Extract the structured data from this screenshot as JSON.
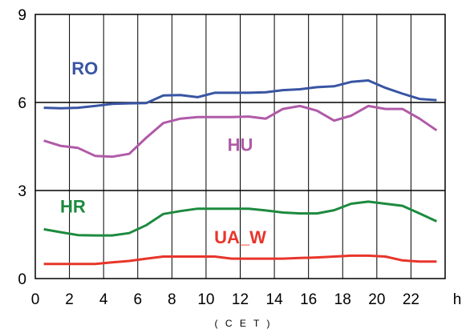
{
  "chart_data": {
    "type": "line",
    "x_unit_label": "h",
    "x_sublabel": "( C E T )",
    "xlim": [
      0,
      24
    ],
    "ylim": [
      0,
      9
    ],
    "x_ticks": [
      0,
      2,
      4,
      6,
      8,
      10,
      12,
      14,
      16,
      18,
      20,
      22
    ],
    "y_ticks": [
      0,
      3,
      6,
      9
    ],
    "grid": {
      "x": true,
      "y": true
    },
    "x": [
      0.5,
      1.5,
      2.5,
      3.5,
      4.5,
      5.5,
      6.5,
      7.5,
      8.5,
      9.5,
      10.5,
      11.5,
      12.5,
      13.5,
      14.5,
      15.5,
      16.5,
      17.5,
      18.5,
      19.5,
      20.5,
      21.5,
      22.5,
      23.5
    ],
    "series": [
      {
        "name": "RO",
        "color": "#3955a3",
        "label_at": [
          2.9,
          6.95
        ],
        "values": [
          5.82,
          5.8,
          5.82,
          5.88,
          5.95,
          5.97,
          5.98,
          6.24,
          6.25,
          6.18,
          6.33,
          6.33,
          6.33,
          6.35,
          6.42,
          6.45,
          6.52,
          6.55,
          6.7,
          6.75,
          6.5,
          6.3,
          6.12,
          6.08
        ]
      },
      {
        "name": "HU",
        "color": "#b05aa8",
        "label_at": [
          12.0,
          4.35
        ],
        "values": [
          4.7,
          4.52,
          4.45,
          4.18,
          4.15,
          4.25,
          4.8,
          5.3,
          5.45,
          5.5,
          5.5,
          5.5,
          5.52,
          5.45,
          5.78,
          5.88,
          5.72,
          5.38,
          5.55,
          5.88,
          5.78,
          5.78,
          5.45,
          5.05
        ]
      },
      {
        "name": "HR",
        "color": "#1d8a3f",
        "label_at": [
          2.2,
          2.25
        ],
        "values": [
          1.68,
          1.58,
          1.48,
          1.47,
          1.47,
          1.55,
          1.82,
          2.2,
          2.3,
          2.38,
          2.38,
          2.38,
          2.38,
          2.32,
          2.25,
          2.22,
          2.22,
          2.33,
          2.55,
          2.62,
          2.55,
          2.48,
          2.22,
          1.95
        ]
      },
      {
        "name": "UA_W",
        "color": "#e8352a",
        "label_at": [
          12.0,
          1.2
        ],
        "values": [
          0.5,
          0.5,
          0.5,
          0.5,
          0.55,
          0.6,
          0.68,
          0.75,
          0.75,
          0.75,
          0.75,
          0.68,
          0.68,
          0.68,
          0.68,
          0.7,
          0.72,
          0.75,
          0.78,
          0.78,
          0.75,
          0.62,
          0.58,
          0.58
        ]
      }
    ]
  }
}
